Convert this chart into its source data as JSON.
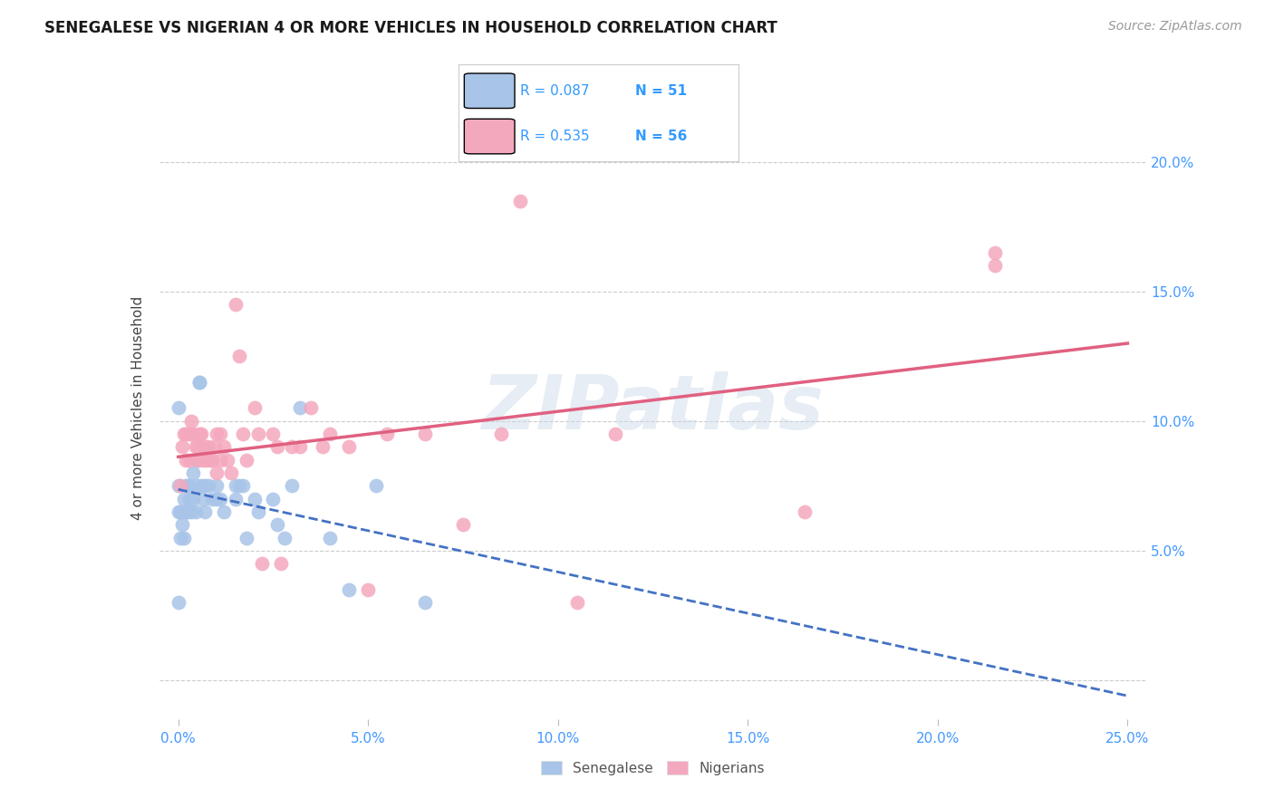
{
  "title": "SENEGALESE VS NIGERIAN 4 OR MORE VEHICLES IN HOUSEHOLD CORRELATION CHART",
  "source": "Source: ZipAtlas.com",
  "ylabel": "4 or more Vehicles in Household",
  "xlim": [
    -0.5,
    25.5
  ],
  "ylim": [
    -1.5,
    22.5
  ],
  "xtick_vals": [
    0,
    5,
    10,
    15,
    20,
    25
  ],
  "xtick_labels": [
    "0.0%",
    "5.0%",
    "10.0%",
    "15.0%",
    "20.0%",
    "25.0%"
  ],
  "ytick_right_vals": [
    5,
    10,
    15,
    20
  ],
  "ytick_right_labels": [
    "5.0%",
    "10.0%",
    "15.0%",
    "20.0%"
  ],
  "senegalese_color": "#a8c4e8",
  "nigerian_color": "#f4a8be",
  "trend_sen_color": "#4472c4",
  "trend_nig_color": "#e06080",
  "senegalese_R": 0.087,
  "senegalese_N": 51,
  "nigerian_R": 0.535,
  "nigerian_N": 56,
  "watermark": "ZIPatlas",
  "senegalese_x": [
    0.0,
    0.0,
    0.0,
    0.0,
    0.05,
    0.05,
    0.08,
    0.1,
    0.1,
    0.15,
    0.15,
    0.2,
    0.2,
    0.25,
    0.25,
    0.3,
    0.3,
    0.35,
    0.4,
    0.4,
    0.45,
    0.5,
    0.5,
    0.55,
    0.55,
    0.6,
    0.65,
    0.7,
    0.7,
    0.8,
    0.9,
    1.0,
    1.0,
    1.1,
    1.2,
    1.5,
    1.5,
    1.6,
    1.7,
    1.8,
    2.0,
    2.1,
    2.5,
    2.6,
    2.8,
    3.0,
    3.2,
    4.0,
    4.5,
    5.2,
    6.5
  ],
  "senegalese_y": [
    10.5,
    7.5,
    6.5,
    3.0,
    6.5,
    5.5,
    6.5,
    6.5,
    6.0,
    7.0,
    5.5,
    7.5,
    6.5,
    7.5,
    6.5,
    7.5,
    7.0,
    6.5,
    8.0,
    7.0,
    6.5,
    8.5,
    7.5,
    11.5,
    11.5,
    7.5,
    7.0,
    7.5,
    6.5,
    7.5,
    7.0,
    7.5,
    7.0,
    7.0,
    6.5,
    7.5,
    7.0,
    7.5,
    7.5,
    5.5,
    7.0,
    6.5,
    7.0,
    6.0,
    5.5,
    7.5,
    10.5,
    5.5,
    3.5,
    7.5,
    3.0
  ],
  "nigerian_x": [
    0.05,
    0.1,
    0.15,
    0.2,
    0.2,
    0.3,
    0.3,
    0.35,
    0.35,
    0.4,
    0.45,
    0.5,
    0.5,
    0.55,
    0.6,
    0.65,
    0.7,
    0.75,
    0.8,
    0.85,
    0.9,
    0.95,
    1.0,
    1.0,
    1.1,
    1.1,
    1.2,
    1.3,
    1.4,
    1.5,
    1.6,
    1.7,
    1.8,
    2.0,
    2.1,
    2.2,
    2.5,
    2.6,
    2.7,
    3.0,
    3.2,
    3.5,
    3.8,
    4.0,
    4.5,
    5.0,
    5.5,
    6.5,
    7.5,
    8.5,
    9.0,
    10.5,
    11.5,
    16.5,
    21.5,
    21.5
  ],
  "nigerian_y": [
    7.5,
    9.0,
    9.5,
    9.5,
    8.5,
    9.5,
    8.5,
    10.0,
    9.5,
    9.5,
    9.0,
    9.0,
    8.5,
    9.5,
    9.5,
    8.5,
    9.0,
    8.5,
    9.0,
    8.5,
    8.5,
    9.0,
    9.5,
    8.0,
    9.5,
    8.5,
    9.0,
    8.5,
    8.0,
    14.5,
    12.5,
    9.5,
    8.5,
    10.5,
    9.5,
    4.5,
    9.5,
    9.0,
    4.5,
    9.0,
    9.0,
    10.5,
    9.0,
    9.5,
    9.0,
    3.5,
    9.5,
    9.5,
    6.0,
    9.5,
    18.5,
    3.0,
    9.5,
    6.5,
    16.5,
    16.0
  ]
}
